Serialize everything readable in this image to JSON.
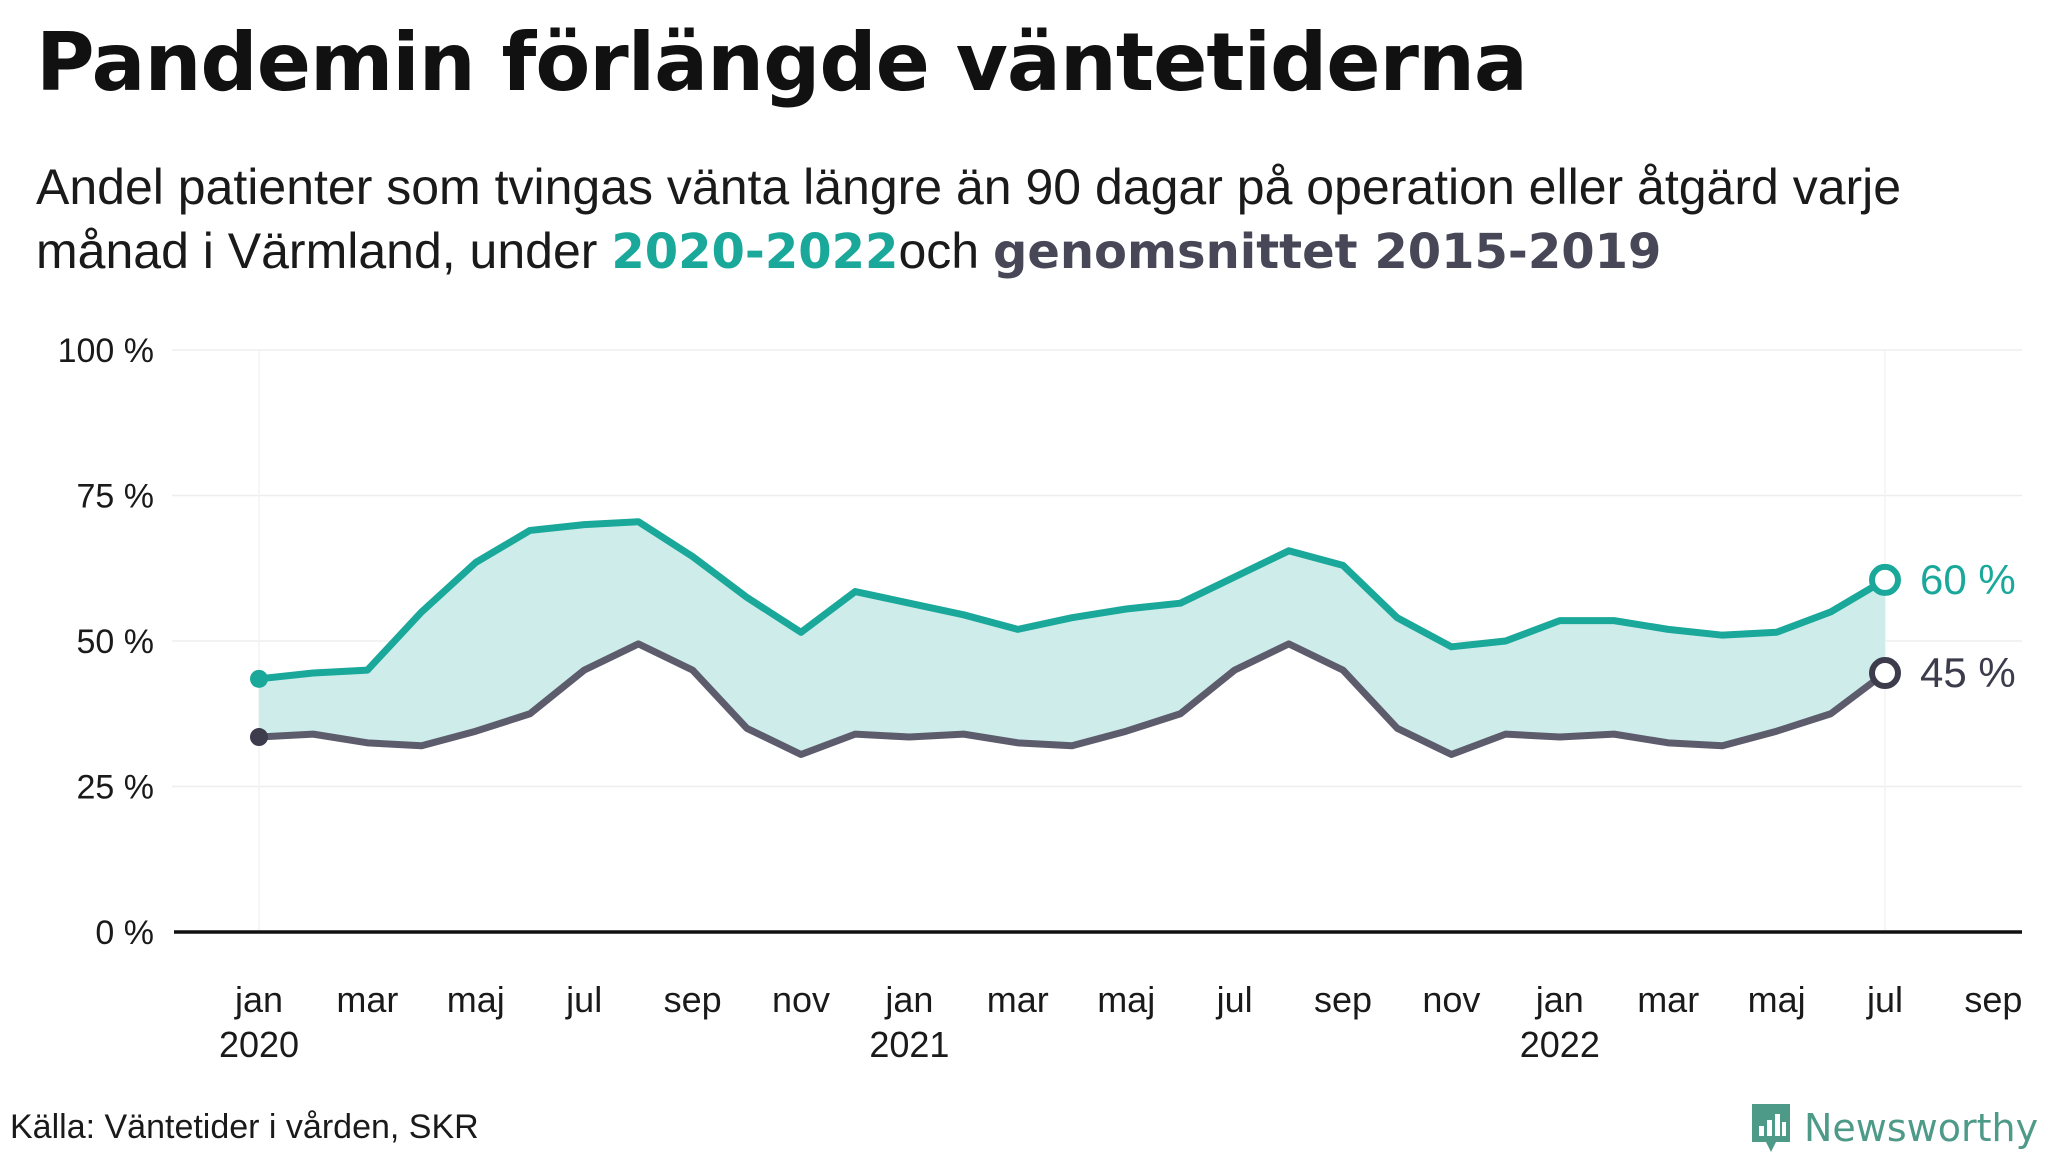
{
  "title": "Pandemin förlängde väntetiderna",
  "subtitle": {
    "text1": "Andel patienter  som tvingas  vänta längre  än 90 dagar  på operation  eller åtgärd varje månad  i Värmland,  under ",
    "highlight1": "2020-2022",
    "text2": "och ",
    "highlight2": "genomsnittet 2015-2019"
  },
  "source": "Källa: Väntetider i vården, SKR",
  "brand": "Newsworthy",
  "colors": {
    "current": "#19a89a",
    "average": "#5c5c6c",
    "band": "#cdecea",
    "highlight2": "#474757"
  },
  "chart_data": {
    "type": "line",
    "ylim": [
      0,
      100
    ],
    "yticks": [
      "0 %",
      "25 %",
      "50 %",
      "75 %",
      "100 %"
    ],
    "xlabels": [
      {
        "label": "jan",
        "year": "2020"
      },
      {
        "label": "mar",
        "year": ""
      },
      {
        "label": "maj",
        "year": ""
      },
      {
        "label": "jul",
        "year": ""
      },
      {
        "label": "sep",
        "year": ""
      },
      {
        "label": "nov",
        "year": ""
      },
      {
        "label": "jan",
        "year": "2021"
      },
      {
        "label": "mar",
        "year": ""
      },
      {
        "label": "maj",
        "year": ""
      },
      {
        "label": "jul",
        "year": ""
      },
      {
        "label": "sep",
        "year": ""
      },
      {
        "label": "nov",
        "year": ""
      },
      {
        "label": "jan",
        "year": "2022"
      },
      {
        "label": "mar",
        "year": ""
      },
      {
        "label": "maj",
        "year": ""
      },
      {
        "label": "jul",
        "year": ""
      },
      {
        "label": "sep",
        "year": ""
      }
    ],
    "x_months": [
      "2020-01",
      "2020-02",
      "2020-03",
      "2020-04",
      "2020-05",
      "2020-06",
      "2020-07",
      "2020-08",
      "2020-09",
      "2020-10",
      "2020-11",
      "2020-12",
      "2021-01",
      "2021-02",
      "2021-03",
      "2021-04",
      "2021-05",
      "2021-06",
      "2021-07",
      "2021-08",
      "2021-09",
      "2021-10",
      "2021-11",
      "2021-12",
      "2022-01",
      "2022-02",
      "2022-03",
      "2022-04",
      "2022-05",
      "2022-06",
      "2022-07"
    ],
    "series": [
      {
        "name": "2020-2022",
        "values": [
          43.5,
          44.5,
          45,
          55,
          63.5,
          69,
          70,
          70.5,
          64.5,
          57.5,
          51.5,
          58.5,
          56.5,
          54.5,
          52,
          54,
          55.5,
          56.5,
          61,
          65.5,
          63,
          54,
          49,
          50,
          53.5,
          53.5,
          52,
          51,
          51.5,
          55,
          60.5
        ]
      },
      {
        "name": "genomsnittet 2015-2019",
        "values": [
          33.5,
          34,
          32.5,
          32,
          34.5,
          37.5,
          45,
          49.5,
          45,
          35,
          30.5,
          34,
          33.5,
          34,
          32.5,
          32,
          34.5,
          37.5,
          45,
          49.5,
          45,
          35,
          30.5,
          34,
          33.5,
          34,
          32.5,
          32,
          34.5,
          37.5,
          44.5
        ]
      }
    ],
    "end_labels": [
      "60 %",
      "45 %"
    ]
  }
}
